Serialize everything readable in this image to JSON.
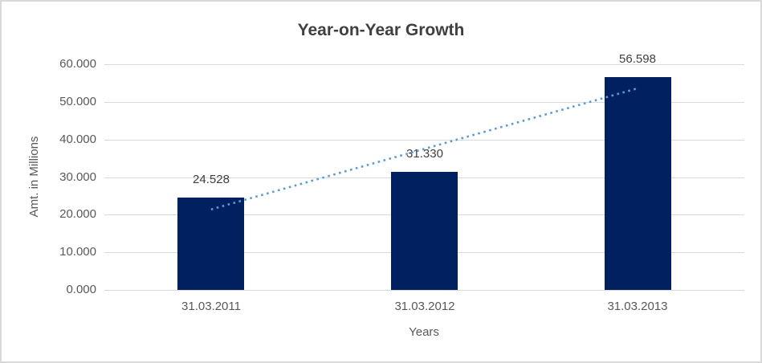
{
  "chart_data": {
    "type": "bar",
    "title": "Year-on-Year Growth",
    "xlabel": "Years",
    "ylabel": "Amt. in Millions",
    "categories": [
      "31.03.2011",
      "31.03.2012",
      "31.03.2013"
    ],
    "values": [
      24.528,
      31.33,
      56.598
    ],
    "bar_value_labels": [
      "24.528",
      "31.330",
      "56.598"
    ],
    "ylim": [
      0,
      60
    ],
    "ytick_step": 10,
    "ytick_labels": [
      "0.000",
      "10.000",
      "20.000",
      "30.000",
      "40.000",
      "50.000",
      "60.000"
    ],
    "grid": true,
    "legend_position": "none",
    "bar_color": "#002060",
    "gridline_color": "#D9D9D9",
    "text_color": "#595959",
    "title_color": "#404040",
    "trendline": {
      "type": "linear",
      "style": "dotted",
      "color": "#5B9BD5",
      "start_value": 21.4,
      "end_value": 53.6
    }
  }
}
